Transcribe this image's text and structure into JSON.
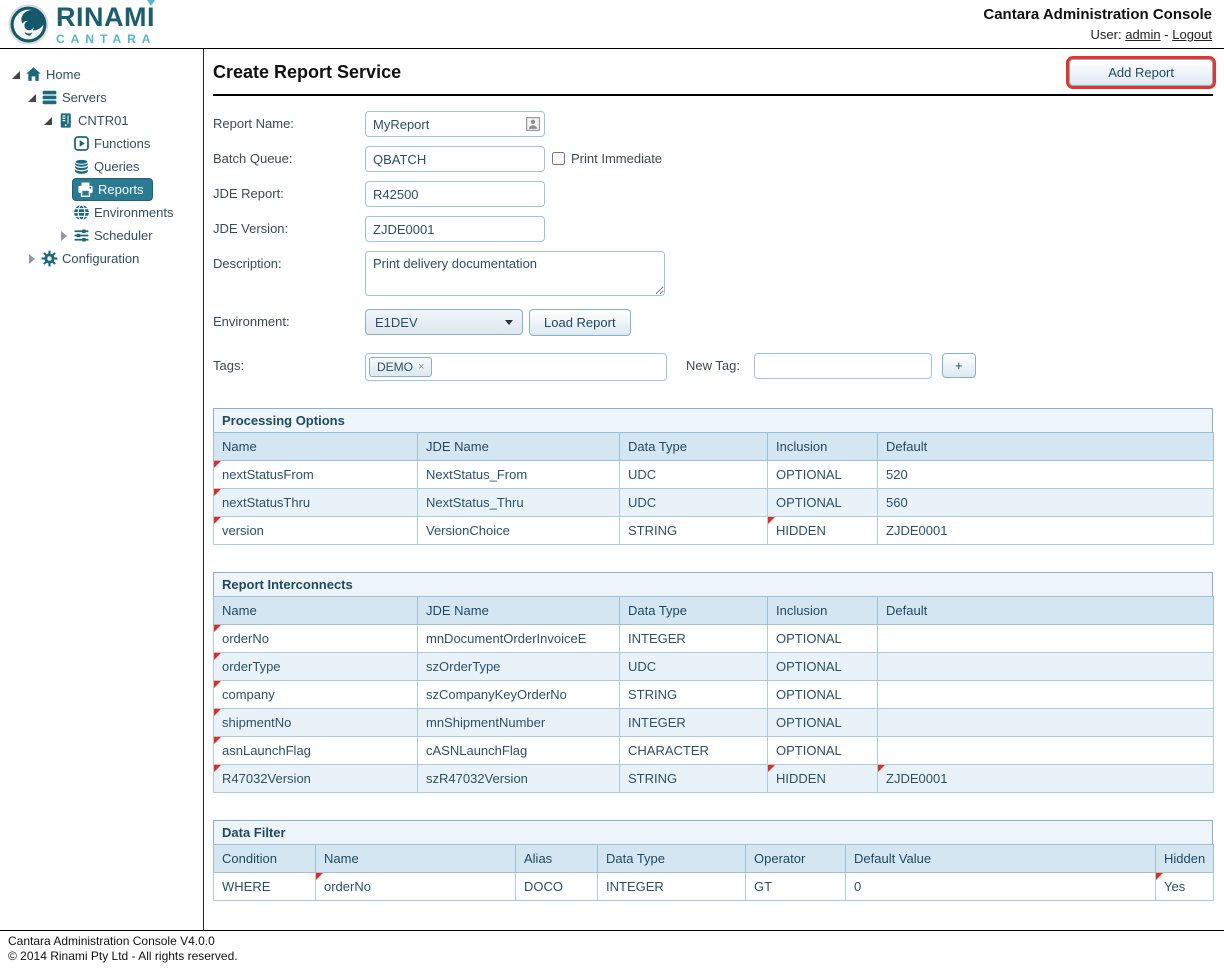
{
  "header": {
    "brand_top": "RINAMI",
    "brand_bottom": "CANTARA",
    "title": "Cantara Administration Console",
    "user_label": "User:",
    "user_name": "admin",
    "separator": "-",
    "logout_label": "Logout"
  },
  "sidebar": {
    "items": [
      {
        "label": "Home",
        "icon": "home-icon",
        "level": 0,
        "expander": "open",
        "selected": false
      },
      {
        "label": "Servers",
        "icon": "servers-icon",
        "level": 1,
        "expander": "open",
        "selected": false
      },
      {
        "label": "CNTR01",
        "icon": "server-icon",
        "level": 2,
        "expander": "open",
        "selected": false
      },
      {
        "label": "Functions",
        "icon": "functions-icon",
        "level": 3,
        "expander": "none",
        "selected": false
      },
      {
        "label": "Queries",
        "icon": "queries-icon",
        "level": 3,
        "expander": "none",
        "selected": false
      },
      {
        "label": "Reports",
        "icon": "reports-icon",
        "level": 3,
        "expander": "none",
        "selected": true
      },
      {
        "label": "Environments",
        "icon": "environments-icon",
        "level": 3,
        "expander": "none",
        "selected": false
      },
      {
        "label": "Scheduler",
        "icon": "scheduler-icon",
        "level": 3,
        "expander": "closed",
        "selected": false
      },
      {
        "label": "Configuration",
        "icon": "configuration-icon",
        "level": 1,
        "expander": "closed",
        "selected": false
      }
    ]
  },
  "main": {
    "page_title": "Create Report Service",
    "add_report_label": "Add Report",
    "form": {
      "report_name": {
        "label": "Report Name:",
        "value": "MyReport"
      },
      "batch_queue": {
        "label": "Batch Queue:",
        "value": "QBATCH"
      },
      "print_immediate": {
        "label": "Print Immediate",
        "checked": false
      },
      "jde_report": {
        "label": "JDE Report:",
        "value": "R42500"
      },
      "jde_version": {
        "label": "JDE Version:",
        "value": "ZJDE0001"
      },
      "description": {
        "label": "Description:",
        "value": "Print delivery documentation"
      },
      "environment": {
        "label": "Environment:",
        "selected": "E1DEV"
      },
      "load_report_label": "Load Report",
      "tags": {
        "label": "Tags:",
        "chips": [
          {
            "label": "DEMO",
            "remove_icon": "×"
          }
        ]
      },
      "new_tag": {
        "label": "New Tag:",
        "value": "",
        "add_label": "+"
      }
    },
    "tables": [
      {
        "title": "Processing Options",
        "columns": [
          "Name",
          "JDE Name",
          "Data Type",
          "Inclusion",
          "Default"
        ],
        "widths": [
          204,
          202,
          148,
          110,
          336
        ],
        "rows": [
          {
            "cells": [
              {
                "text": "nextStatusFrom",
                "marker": true
              },
              {
                "text": "NextStatus_From"
              },
              {
                "text": "UDC"
              },
              {
                "text": "OPTIONAL"
              },
              {
                "text": "520"
              }
            ]
          },
          {
            "cells": [
              {
                "text": "nextStatusThru",
                "marker": true
              },
              {
                "text": "NextStatus_Thru"
              },
              {
                "text": "UDC"
              },
              {
                "text": "OPTIONAL"
              },
              {
                "text": "560"
              }
            ]
          },
          {
            "cells": [
              {
                "text": "version",
                "marker": true
              },
              {
                "text": "VersionChoice"
              },
              {
                "text": "STRING"
              },
              {
                "text": "HIDDEN",
                "marker": true
              },
              {
                "text": "ZJDE0001"
              }
            ]
          }
        ]
      },
      {
        "title": "Report Interconnects",
        "columns": [
          "Name",
          "JDE Name",
          "Data Type",
          "Inclusion",
          "Default"
        ],
        "widths": [
          204,
          202,
          148,
          110,
          336
        ],
        "rows": [
          {
            "cells": [
              {
                "text": "orderNo",
                "marker": true
              },
              {
                "text": "mnDocumentOrderInvoiceE"
              },
              {
                "text": "INTEGER"
              },
              {
                "text": "OPTIONAL"
              },
              {
                "text": ""
              }
            ]
          },
          {
            "cells": [
              {
                "text": "orderType",
                "marker": true
              },
              {
                "text": "szOrderType"
              },
              {
                "text": "UDC"
              },
              {
                "text": "OPTIONAL"
              },
              {
                "text": ""
              }
            ]
          },
          {
            "cells": [
              {
                "text": "company",
                "marker": true
              },
              {
                "text": "szCompanyKeyOrderNo"
              },
              {
                "text": "STRING"
              },
              {
                "text": "OPTIONAL"
              },
              {
                "text": ""
              }
            ]
          },
          {
            "cells": [
              {
                "text": "shipmentNo",
                "marker": true
              },
              {
                "text": "mnShipmentNumber"
              },
              {
                "text": "INTEGER"
              },
              {
                "text": "OPTIONAL"
              },
              {
                "text": ""
              }
            ]
          },
          {
            "cells": [
              {
                "text": "asnLaunchFlag",
                "marker": true
              },
              {
                "text": "cASNLaunchFlag"
              },
              {
                "text": "CHARACTER"
              },
              {
                "text": "OPTIONAL"
              },
              {
                "text": ""
              }
            ]
          },
          {
            "cells": [
              {
                "text": "R47032Version",
                "marker": true
              },
              {
                "text": "szR47032Version"
              },
              {
                "text": "STRING"
              },
              {
                "text": "HIDDEN",
                "marker": true
              },
              {
                "text": "ZJDE0001",
                "marker": true
              }
            ]
          }
        ]
      },
      {
        "title": "Data Filter",
        "columns": [
          "Condition",
          "Name",
          "Alias",
          "Data Type",
          "Operator",
          "Default Value",
          "Hidden"
        ],
        "widths": [
          102,
          200,
          82,
          148,
          100,
          310,
          58
        ],
        "rows": [
          {
            "cells": [
              {
                "text": "WHERE"
              },
              {
                "text": "orderNo",
                "marker": true
              },
              {
                "text": "DOCO"
              },
              {
                "text": "INTEGER"
              },
              {
                "text": "GT"
              },
              {
                "text": "0"
              },
              {
                "text": "Yes",
                "marker": true
              }
            ]
          }
        ]
      }
    ]
  },
  "footer": {
    "line1": "Cantara Administration Console V4.0.0",
    "line2": "© 2014 Rinami Pty Ltd - All rights reserved."
  },
  "colors": {
    "brand_teal_dark": "#1b5e70",
    "brand_teal_light": "#56b6cb",
    "sidebar_icon_teal": "#1b6a7c",
    "selected_item_bg": "#2a7b91",
    "table_header_bg": "#d5e6f3",
    "table_alt_row_bg": "#e9f2f9",
    "cell_marker_red": "#e8291c",
    "highlight_border_red": "#e5352a",
    "input_border_blue": "#9cc4da"
  }
}
